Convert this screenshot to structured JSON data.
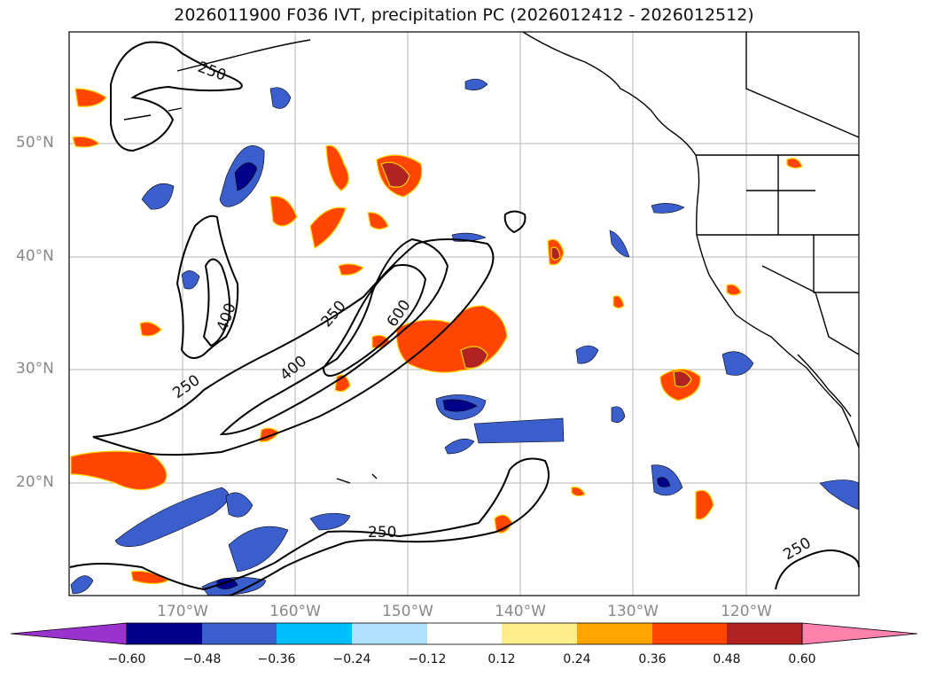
{
  "title": "2026011900 F036 IVT, precipitation PC (2026012412 - 2026012512)",
  "lat_labels": [
    "50°N",
    "40°N",
    "30°N",
    "20°N"
  ],
  "lon_labels": [
    "170°W",
    "160°W",
    "150°W",
    "140°W",
    "130°W",
    "120°W"
  ],
  "contour_labels": [
    "250",
    "400",
    "600",
    "250",
    "400",
    "250",
    "250",
    "250"
  ],
  "colorbar": {
    "ticks": [
      "−0.60",
      "−0.48",
      "−0.36",
      "−0.24",
      "−0.12",
      "0.12",
      "0.24",
      "0.36",
      "0.48",
      "0.60"
    ],
    "colors": [
      "#9a32cd",
      "#00008b",
      "#3a5fcd",
      "#00bfff",
      "#b0e2ff",
      "#ffffff",
      "#ffec8b",
      "#ffa500",
      "#ff4500",
      "#b22222",
      "#ff82ab"
    ]
  },
  "colors": {
    "pos_low": "#ffec8b",
    "pos_mid": "#ffa500",
    "pos_high": "#ff4500",
    "pos_top": "#b22222",
    "neg_low": "#b0e2ff",
    "neg_mid": "#00bfff",
    "neg_high": "#3a5fcd",
    "neg_top": "#00008b"
  }
}
